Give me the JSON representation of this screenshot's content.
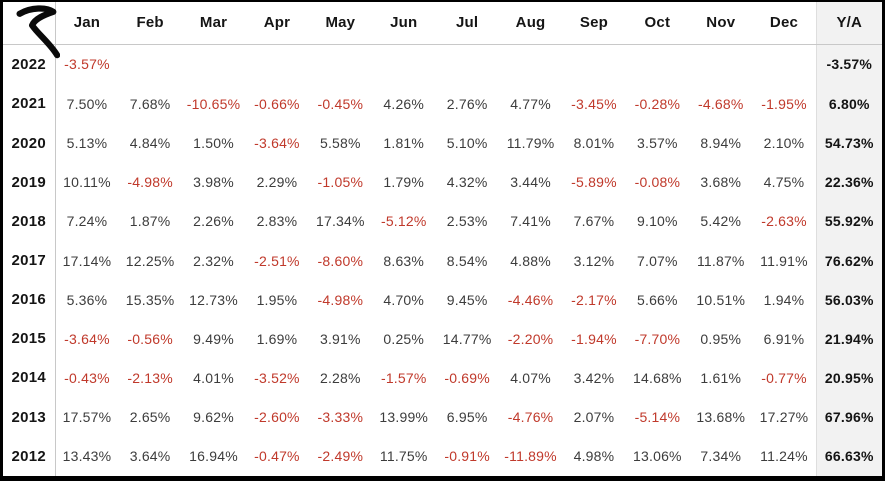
{
  "brand": {
    "logo_icon": "r-swoosh-logo"
  },
  "colors": {
    "frame_border": "#000000",
    "negative_text": "#c0392b",
    "positive_text": "#3c3c3c",
    "header_text": "#151515",
    "ya_background": "#f2f2f2",
    "gridline": "#c8c8c8"
  },
  "table": {
    "columns": [
      "Jan",
      "Feb",
      "Mar",
      "Apr",
      "May",
      "Jun",
      "Jul",
      "Aug",
      "Sep",
      "Oct",
      "Nov",
      "Dec"
    ],
    "ya_column": "Y/A",
    "rows": [
      {
        "year": "2022",
        "values": [
          "-3.57%",
          "",
          "",
          "",
          "",
          "",
          "",
          "",
          "",
          "",
          "",
          ""
        ],
        "ya": "-3.57%"
      },
      {
        "year": "2021",
        "values": [
          "7.50%",
          "7.68%",
          "-10.65%",
          "-0.66%",
          "-0.45%",
          "4.26%",
          "2.76%",
          "4.77%",
          "-3.45%",
          "-0.28%",
          "-4.68%",
          "-1.95%"
        ],
        "ya": "6.80%"
      },
      {
        "year": "2020",
        "values": [
          "5.13%",
          "4.84%",
          "1.50%",
          "-3.64%",
          "5.58%",
          "1.81%",
          "5.10%",
          "11.79%",
          "8.01%",
          "3.57%",
          "8.94%",
          "2.10%"
        ],
        "ya": "54.73%"
      },
      {
        "year": "2019",
        "values": [
          "10.11%",
          "-4.98%",
          "3.98%",
          "2.29%",
          "-1.05%",
          "1.79%",
          "4.32%",
          "3.44%",
          "-5.89%",
          "-0.08%",
          "3.68%",
          "4.75%"
        ],
        "ya": "22.36%"
      },
      {
        "year": "2018",
        "values": [
          "7.24%",
          "1.87%",
          "2.26%",
          "2.83%",
          "17.34%",
          "-5.12%",
          "2.53%",
          "7.41%",
          "7.67%",
          "9.10%",
          "5.42%",
          "-2.63%"
        ],
        "ya": "55.92%"
      },
      {
        "year": "2017",
        "values": [
          "17.14%",
          "12.25%",
          "2.32%",
          "-2.51%",
          "-8.60%",
          "8.63%",
          "8.54%",
          "4.88%",
          "3.12%",
          "7.07%",
          "11.87%",
          "11.91%"
        ],
        "ya": "76.62%"
      },
      {
        "year": "2016",
        "values": [
          "5.36%",
          "15.35%",
          "12.73%",
          "1.95%",
          "-4.98%",
          "4.70%",
          "9.45%",
          "-4.46%",
          "-2.17%",
          "5.66%",
          "10.51%",
          "1.94%"
        ],
        "ya": "56.03%"
      },
      {
        "year": "2015",
        "values": [
          "-3.64%",
          "-0.56%",
          "9.49%",
          "1.69%",
          "3.91%",
          "0.25%",
          "14.77%",
          "-2.20%",
          "-1.94%",
          "-7.70%",
          "0.95%",
          "6.91%"
        ],
        "ya": "21.94%"
      },
      {
        "year": "2014",
        "values": [
          "-0.43%",
          "-2.13%",
          "4.01%",
          "-3.52%",
          "2.28%",
          "-1.57%",
          "-0.69%",
          "4.07%",
          "3.42%",
          "14.68%",
          "1.61%",
          "-0.77%"
        ],
        "ya": "20.95%"
      },
      {
        "year": "2013",
        "values": [
          "17.57%",
          "2.65%",
          "9.62%",
          "-2.60%",
          "-3.33%",
          "13.99%",
          "6.95%",
          "-4.76%",
          "2.07%",
          "-5.14%",
          "13.68%",
          "17.27%"
        ],
        "ya": "67.96%"
      },
      {
        "year": "2012",
        "values": [
          "13.43%",
          "3.64%",
          "16.94%",
          "-0.47%",
          "-2.49%",
          "11.75%",
          "-0.91%",
          "-11.89%",
          "4.98%",
          "13.06%",
          "7.34%",
          "11.24%"
        ],
        "ya": "66.63%"
      }
    ]
  },
  "chart_data": {
    "type": "table",
    "title": "",
    "categories": [
      "Jan",
      "Feb",
      "Mar",
      "Apr",
      "May",
      "Jun",
      "Jul",
      "Aug",
      "Sep",
      "Oct",
      "Nov",
      "Dec",
      "Y/A"
    ],
    "series": [
      {
        "name": "2022",
        "values": [
          -3.57,
          null,
          null,
          null,
          null,
          null,
          null,
          null,
          null,
          null,
          null,
          null,
          -3.57
        ]
      },
      {
        "name": "2021",
        "values": [
          7.5,
          7.68,
          -10.65,
          -0.66,
          -0.45,
          4.26,
          2.76,
          4.77,
          -3.45,
          -0.28,
          -4.68,
          -1.95,
          6.8
        ]
      },
      {
        "name": "2020",
        "values": [
          5.13,
          4.84,
          1.5,
          -3.64,
          5.58,
          1.81,
          5.1,
          11.79,
          8.01,
          3.57,
          8.94,
          2.1,
          54.73
        ]
      },
      {
        "name": "2019",
        "values": [
          10.11,
          -4.98,
          3.98,
          2.29,
          -1.05,
          1.79,
          4.32,
          3.44,
          -5.89,
          -0.08,
          3.68,
          4.75,
          22.36
        ]
      },
      {
        "name": "2018",
        "values": [
          7.24,
          1.87,
          2.26,
          2.83,
          17.34,
          -5.12,
          2.53,
          7.41,
          7.67,
          9.1,
          5.42,
          -2.63,
          55.92
        ]
      },
      {
        "name": "2017",
        "values": [
          17.14,
          12.25,
          2.32,
          -2.51,
          -8.6,
          8.63,
          8.54,
          4.88,
          3.12,
          7.07,
          11.87,
          11.91,
          76.62
        ]
      },
      {
        "name": "2016",
        "values": [
          5.36,
          15.35,
          12.73,
          1.95,
          -4.98,
          4.7,
          9.45,
          -4.46,
          -2.17,
          5.66,
          10.51,
          1.94,
          56.03
        ]
      },
      {
        "name": "2015",
        "values": [
          -3.64,
          -0.56,
          9.49,
          1.69,
          3.91,
          0.25,
          14.77,
          -2.2,
          -1.94,
          -7.7,
          0.95,
          6.91,
          21.94
        ]
      },
      {
        "name": "2014",
        "values": [
          -0.43,
          -2.13,
          4.01,
          -3.52,
          2.28,
          -1.57,
          -0.69,
          4.07,
          3.42,
          14.68,
          1.61,
          -0.77,
          20.95
        ]
      },
      {
        "name": "2013",
        "values": [
          17.57,
          2.65,
          9.62,
          -2.6,
          -3.33,
          13.99,
          6.95,
          -4.76,
          2.07,
          -5.14,
          13.68,
          17.27,
          67.96
        ]
      },
      {
        "name": "2012",
        "values": [
          13.43,
          3.64,
          16.94,
          -0.47,
          -2.49,
          11.75,
          -0.91,
          -11.89,
          4.98,
          13.06,
          7.34,
          11.24,
          66.63
        ]
      }
    ],
    "value_unit": "%",
    "negative_color": "#c0392b",
    "layout": "years as rows (2022 top to 2012 bottom), months as columns, Y/A = yearly aggregate column"
  }
}
